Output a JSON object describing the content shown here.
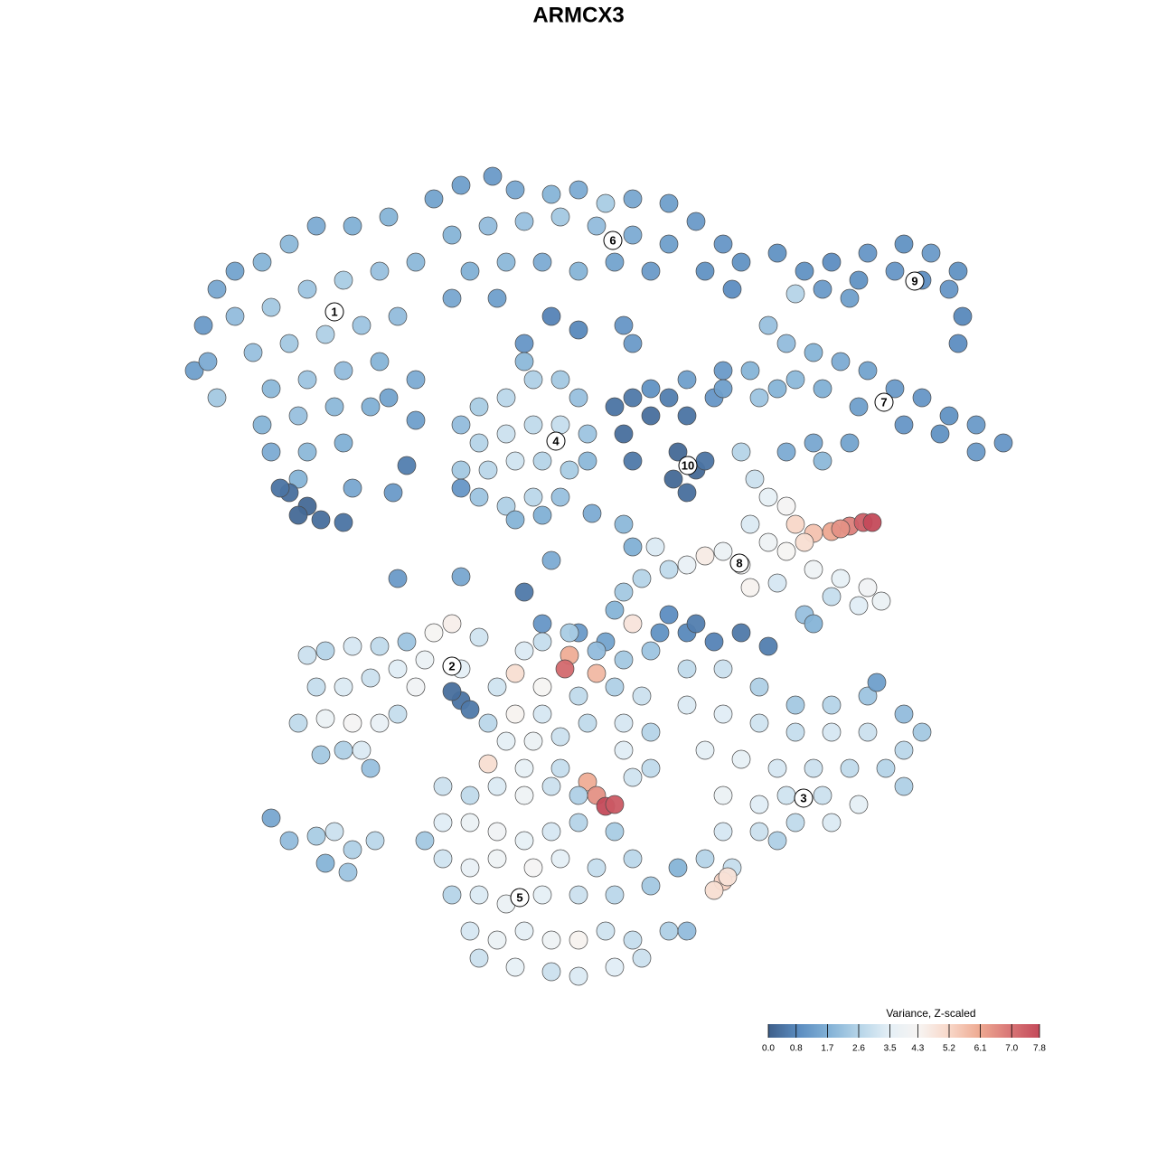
{
  "chart_data": {
    "type": "scatter",
    "title": "ARMCX3",
    "xlim": [
      200,
      1130
    ],
    "ylim": [
      1095,
      180
    ],
    "x": [
      215,
      225,
      240,
      260,
      290,
      320,
      350,
      390,
      430,
      260,
      300,
      340,
      380,
      420,
      460,
      280,
      320,
      360,
      400,
      440,
      300,
      340,
      380,
      420,
      460,
      290,
      330,
      370,
      410,
      300,
      340,
      380,
      240,
      230,
      330,
      390,
      430,
      320,
      340,
      355,
      380,
      330,
      310,
      480,
      510,
      545,
      570,
      610,
      640,
      670,
      700,
      740,
      770,
      800,
      820,
      500,
      540,
      580,
      620,
      660,
      700,
      740,
      780,
      520,
      560,
      600,
      640,
      680,
      720,
      810,
      500,
      550,
      610,
      640,
      690,
      700,
      580,
      510,
      530,
      560,
      590,
      620,
      640,
      530,
      560,
      590,
      620,
      650,
      510,
      540,
      570,
      600,
      630,
      530,
      560,
      590,
      620,
      580,
      570,
      650,
      600,
      680,
      700,
      720,
      690,
      740,
      760,
      750,
      770,
      760,
      745,
      780,
      720,
      760,
      800,
      790,
      700,
      890,
      920,
      960,
      1000,
      1030,
      1060,
      910,
      950,
      990,
      1020,
      1050,
      1065,
      1060,
      940,
      880,
      860,
      850,
      870,
      900,
      930,
      960,
      990,
      1020,
      1050,
      1080,
      1110,
      880,
      910,
      950,
      1000,
      1040,
      1080,
      860,
      840,
      900,
      940,
      870,
      830,
      800,
      910,
      820,
      835,
      850,
      870,
      830,
      850,
      880,
      900,
      920,
      940,
      955,
      965,
      930,
      890,
      870,
      800,
      820,
      780,
      760,
      900,
      930,
      960,
      975,
      950,
      920,
      890,
      900,
      860,
      830,
      740,
      710,
      690,
      680,
      700,
      730,
      760,
      790,
      820,
      850,
      740,
      770,
      670,
      640,
      600,
      450,
      510,
      440,
      510,
      580,
      700,
      725,
      610,
      690,
      655,
      460,
      435,
      340,
      360,
      390,
      420,
      450,
      480,
      500,
      470,
      350,
      380,
      410,
      440,
      460,
      330,
      360,
      390,
      420,
      440,
      400,
      380,
      410,
      355,
      510,
      520,
      500,
      510,
      530,
      300,
      320,
      350,
      370,
      360,
      390,
      415,
      385,
      720,
      760,
      800,
      840,
      880,
      920,
      960,
      1000,
      1020,
      760,
      800,
      840,
      880,
      920,
      960,
      1000,
      780,
      820,
      860,
      900,
      940,
      980,
      800,
      840,
      870,
      910,
      950,
      800,
      840,
      880,
      920,
      780,
      810,
      800,
      790,
      805,
      860,
      970,
      750,
      1000,
      580,
      600,
      630,
      660,
      690,
      570,
      600,
      630,
      625,
      660,
      570,
      600,
      640,
      680,
      710,
      560,
      590,
      620,
      650,
      690,
      720,
      540,
      580,
      620,
      650,
      660,
      670,
      680,
      700,
      720,
      690,
      550,
      540,
      490,
      520,
      550,
      580,
      610,
      640,
      490,
      520,
      550,
      580,
      610,
      640,
      680,
      490,
      520,
      550,
      590,
      620,
      660,
      700,
      500,
      530,
      560,
      600,
      640,
      680,
      720,
      520,
      550,
      580,
      610,
      640,
      670,
      700,
      740,
      570,
      610,
      640,
      680,
      710,
      760,
      470,
      530
    ],
    "y": [
      410,
      360,
      320,
      300,
      290,
      270,
      250,
      250,
      240,
      350,
      340,
      320,
      310,
      300,
      290,
      390,
      380,
      370,
      360,
      350,
      430,
      420,
      410,
      400,
      420,
      470,
      460,
      450,
      450,
      500,
      500,
      490,
      440,
      400,
      530,
      540,
      440,
      545,
      560,
      575,
      578,
      570,
      540,
      220,
      205,
      195,
      210,
      215,
      210,
      225,
      220,
      225,
      245,
      270,
      290,
      260,
      250,
      245,
      240,
      250,
      260,
      270,
      300,
      300,
      290,
      290,
      300,
      290,
      300,
      320,
      330,
      330,
      350,
      365,
      360,
      380,
      380,
      470,
      450,
      440,
      420,
      420,
      440,
      490,
      480,
      470,
      470,
      480,
      520,
      520,
      510,
      510,
      520,
      550,
      560,
      550,
      550,
      400,
      575,
      510,
      570,
      450,
      440,
      460,
      480,
      440,
      460,
      500,
      520,
      545,
      530,
      510,
      430,
      420,
      410,
      440,
      510,
      300,
      290,
      280,
      270,
      280,
      300,
      320,
      310,
      300,
      310,
      320,
      350,
      380,
      330,
      325,
      280,
      360,
      380,
      390,
      400,
      410,
      430,
      440,
      460,
      470,
      490,
      420,
      430,
      450,
      470,
      480,
      500,
      430,
      440,
      490,
      490,
      500,
      410,
      430,
      510,
      500,
      530,
      550,
      560,
      580,
      600,
      580,
      590,
      588,
      582,
      578,
      578,
      585,
      600,
      610,
      610,
      625,
      615,
      625,
      630,
      640,
      650,
      665,
      670,
      660,
      680,
      690,
      645,
      650,
      630,
      640,
      655,
      675,
      690,
      700,
      700,
      710,
      700,
      715,
      680,
      690,
      710,
      700,
      690,
      515,
      540,
      640,
      638,
      655,
      605,
      605,
      620,
      580,
      568,
      465,
      545,
      725,
      720,
      715,
      715,
      710,
      700,
      690,
      730,
      760,
      760,
      750,
      740,
      760,
      800,
      795,
      800,
      800,
      790,
      830,
      830,
      850,
      835,
      775,
      785,
      765,
      740,
      705,
      905,
      930,
      925,
      920,
      955,
      940,
      930,
      965,
      720,
      740,
      740,
      760,
      780,
      780,
      770,
      790,
      810,
      780,
      790,
      800,
      810,
      810,
      810,
      830,
      830,
      840,
      850,
      850,
      850,
      850,
      880,
      890,
      880,
      880,
      890,
      920,
      920,
      910,
      910,
      950,
      960,
      975,
      985,
      970,
      930,
      755,
      960,
      870,
      720,
      710,
      700,
      720,
      730,
      745,
      760,
      725,
      740,
      745,
      790,
      790,
      770,
      760,
      770,
      820,
      820,
      815,
      800,
      800,
      810,
      845,
      850,
      850,
      865,
      880,
      892,
      890,
      860,
      850,
      830,
      760,
      800,
      870,
      880,
      870,
      880,
      870,
      880,
      910,
      910,
      920,
      930,
      920,
      910,
      920,
      950,
      960,
      950,
      960,
      950,
      960,
      950,
      990,
      990,
      1000,
      990,
      990,
      990,
      980,
      1030,
      1040,
      1030,
      1040,
      1040,
      1030,
      1040,
      1030,
      1070,
      1075,
      1080,
      1070,
      1060,
      1030,
      930,
      1060
    ],
    "values": [
      1.3,
      1.2,
      1.5,
      1.4,
      1.8,
      1.9,
      1.6,
      1.7,
      1.8,
      2.0,
      2.3,
      2.2,
      2.4,
      2.1,
      1.9,
      2.1,
      2.3,
      2.5,
      2.2,
      2.0,
      1.9,
      2.2,
      2.0,
      1.8,
      1.6,
      1.8,
      2.1,
      1.9,
      1.7,
      1.6,
      1.9,
      1.7,
      2.3,
      1.6,
      1.8,
      1.5,
      1.4,
      0.3,
      0.2,
      0.3,
      0.4,
      0.2,
      0.4,
      1.4,
      1.3,
      1.2,
      1.5,
      1.8,
      1.6,
      2.4,
      1.5,
      1.3,
      1.2,
      1.1,
      1.0,
      1.8,
      2.0,
      2.1,
      2.3,
      2.0,
      1.6,
      1.3,
      1.0,
      1.7,
      1.9,
      1.6,
      1.8,
      1.4,
      1.2,
      0.9,
      1.5,
      1.3,
      0.7,
      0.8,
      1.1,
      1.2,
      1.1,
      2.0,
      2.4,
      2.7,
      2.5,
      2.3,
      2.1,
      2.6,
      3.0,
      2.8,
      2.9,
      2.2,
      2.3,
      2.7,
      3.1,
      2.6,
      2.4,
      2.2,
      2.5,
      2.7,
      2.1,
      1.9,
      1.8,
      1.9,
      1.7,
      0.4,
      0.5,
      0.3,
      0.3,
      0.6,
      0.4,
      0.2,
      0.2,
      0.3,
      0.2,
      0.4,
      1.0,
      1.3,
      1.2,
      1.1,
      0.5,
      1.0,
      0.9,
      1.1,
      1.0,
      1.2,
      1.0,
      1.2,
      1.0,
      1.1,
      0.9,
      1.1,
      0.8,
      0.9,
      1.3,
      2.6,
      1.0,
      2.1,
      2.0,
      1.8,
      1.6,
      1.4,
      1.2,
      1.1,
      1.0,
      1.2,
      1.1,
      1.9,
      1.7,
      1.3,
      1.1,
      1.0,
      1.2,
      1.8,
      2.2,
      1.5,
      1.4,
      1.6,
      1.8,
      1.3,
      1.9,
      2.6,
      3.0,
      3.6,
      4.2,
      3.3,
      3.9,
      5.2,
      5.6,
      6.1,
      6.8,
      7.4,
      7.8,
      6.5,
      5.0,
      4.3,
      3.8,
      4.1,
      4.6,
      3.7,
      3.9,
      3.6,
      4.0,
      3.8,
      3.4,
      2.9,
      2.1,
      1.8,
      3.2,
      4.4,
      2.8,
      2.6,
      2.3,
      1.8,
      4.8,
      1.0,
      0.8,
      0.7,
      0.5,
      0.6,
      0.9,
      0.6,
      1.4,
      1.2,
      1.1,
      0.6,
      1.1,
      1.2,
      1.5,
      0.5,
      1.7,
      3.3,
      1.6,
      1.9,
      1.6,
      1.3,
      1.2,
      3.0,
      2.6,
      3.2,
      2.8,
      2.2,
      4.3,
      4.5,
      3.8,
      2.9,
      3.3,
      3.0,
      3.4,
      4.0,
      2.8,
      3.8,
      4.2,
      3.7,
      2.9,
      3.3,
      2.5,
      2.1,
      2.3,
      0.4,
      0.5,
      0.3,
      3.5,
      3.1,
      1.5,
      2.0,
      2.4,
      3.0,
      1.8,
      2.5,
      2.7,
      2.2,
      2.2,
      2.8,
      3.0,
      2.5,
      2.3,
      2.6,
      2.2,
      2.0,
      2.3,
      3.3,
      3.4,
      3.1,
      2.9,
      3.2,
      3.0,
      2.7,
      3.5,
      3.6,
      3.2,
      3.0,
      2.8,
      2.6,
      3.8,
      3.4,
      3.1,
      3.0,
      3.5,
      3.2,
      3.0,
      2.8,
      3.3,
      2.6,
      2.9,
      5.3,
      5.0,
      4.9,
      2.5,
      1.3,
      1.8,
      2.5,
      3.3,
      2.9,
      2.4,
      2.0,
      2.3,
      5.0,
      4.3,
      6.0,
      7.2,
      5.8,
      4.4,
      3.2,
      2.8,
      2.5,
      3.0,
      3.5,
      3.8,
      3.0,
      2.8,
      3.2,
      2.6,
      5.0,
      3.6,
      2.9,
      6.0,
      6.5,
      7.8,
      7.5,
      3.1,
      2.8,
      3.4,
      3.1,
      2.7,
      3.0,
      2.8,
      3.3,
      3.9,
      3.0,
      2.5,
      3.4,
      3.8,
      4.0,
      3.6,
      3.2,
      2.6,
      2.4,
      3.1,
      3.7,
      3.9,
      4.2,
      3.5,
      2.9,
      2.7,
      2.6,
      3.3,
      3.8,
      3.5,
      3.0,
      2.7,
      2.3,
      3.2,
      3.8,
      3.5,
      3.9,
      4.4,
      3.1,
      2.9,
      2.5,
      3.6,
      3.0,
      3.3,
      3.4,
      3.0,
      2.0,
      2.3,
      3.0
    ],
    "cluster_labels": {
      "labels": [
        "1",
        "2",
        "3",
        "4",
        "5",
        "6",
        "7",
        "8",
        "9",
        "10"
      ],
      "x": [
        370,
        500,
        889,
        615,
        575,
        678,
        978,
        818,
        1012,
        761
      ],
      "y": [
        345,
        737,
        883,
        488,
        993,
        266,
        445,
        623,
        311,
        515
      ]
    },
    "clim": [
      0,
      7.8
    ],
    "colorscale": [
      "#3e5f8a",
      "#5b8cc0",
      "#82b1d6",
      "#b5d4e8",
      "#e4eff6",
      "#f7f4f2",
      "#f8d7c8",
      "#eeaa92",
      "#d97777",
      "#c44a5a"
    ],
    "colorbar": {
      "title": "Variance, Z-scaled",
      "ticks": [
        {
          "value": 0,
          "label": "0.0"
        },
        0.8,
        1.7,
        2.6,
        3.5,
        4.3,
        5.2,
        6.1,
        {
          "value": 7,
          "label": "7.0"
        },
        7.8
      ]
    }
  }
}
